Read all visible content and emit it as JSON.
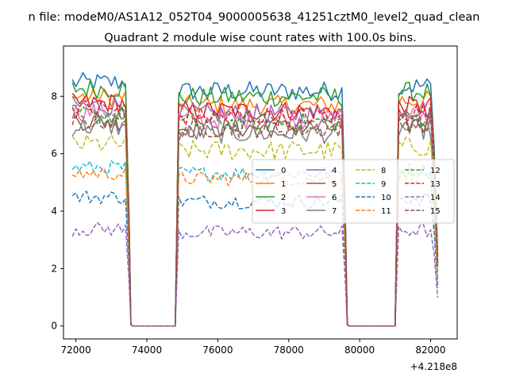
{
  "suptitle": "n file: modeM0/AS1A12_052T04_9000005638_41251cztM0_level2_quad_clean",
  "chart_data": {
    "type": "line",
    "title": "Quadrant 2 module wise count rates with 100.0s bins.",
    "xlabel": "",
    "ylabel": "",
    "x_offset_label": "+4.218e8",
    "xlim": [
      71650,
      82750
    ],
    "ylim": [
      -0.45,
      9.75
    ],
    "xticks": [
      72000,
      74000,
      76000,
      78000,
      80000,
      82000
    ],
    "xtick_labels": [
      "72000",
      "74000",
      "76000",
      "78000",
      "80000",
      "82000"
    ],
    "yticks": [
      0,
      2,
      4,
      6,
      8
    ],
    "ytick_labels": [
      "0",
      "2",
      "4",
      "6",
      "8"
    ],
    "grid": false,
    "legend_position": "center-right",
    "gti_segments": [
      {
        "start": 71900,
        "end": 73400
      },
      {
        "start": 74900,
        "end": 79500
      },
      {
        "start": 81100,
        "end": 82200
      }
    ],
    "dead_intervals": [
      {
        "start": 73600,
        "end": 74800
      },
      {
        "start": 79700,
        "end": 81000
      }
    ],
    "series": [
      {
        "name": "0",
        "mean": 8.3,
        "color": "#1f77b4",
        "dash": "solid"
      },
      {
        "name": "1",
        "mean": 7.8,
        "color": "#ff7f0e",
        "dash": "solid"
      },
      {
        "name": "2",
        "mean": 8.1,
        "color": "#2ca02c",
        "dash": "solid"
      },
      {
        "name": "3",
        "mean": 7.6,
        "color": "#d62728",
        "dash": "solid"
      },
      {
        "name": "4",
        "mean": 7.5,
        "color": "#9467bd",
        "dash": "solid"
      },
      {
        "name": "5",
        "mean": 7.0,
        "color": "#8c564b",
        "dash": "solid"
      },
      {
        "name": "6",
        "mean": 7.3,
        "color": "#e377c2",
        "dash": "solid"
      },
      {
        "name": "7",
        "mean": 6.8,
        "color": "#7f7f7f",
        "dash": "solid"
      },
      {
        "name": "8",
        "mean": 6.2,
        "color": "#bcbd22",
        "dash": "dashed"
      },
      {
        "name": "9",
        "mean": 5.4,
        "color": "#17becf",
        "dash": "dashed"
      },
      {
        "name": "10",
        "mean": 4.4,
        "color": "#1f77b4",
        "dash": "dashed"
      },
      {
        "name": "11",
        "mean": 5.2,
        "color": "#ff7f0e",
        "dash": "dashed"
      },
      {
        "name": "12",
        "mean": 7.2,
        "color": "#2ca02c",
        "dash": "dashed"
      },
      {
        "name": "13",
        "mean": 7.4,
        "color": "#d62728",
        "dash": "dashed"
      },
      {
        "name": "14",
        "mean": 3.3,
        "color": "#9467bd",
        "dash": "dashed"
      },
      {
        "name": "15",
        "mean": 7.0,
        "color": "#8c564b",
        "dash": "dashed"
      }
    ]
  }
}
